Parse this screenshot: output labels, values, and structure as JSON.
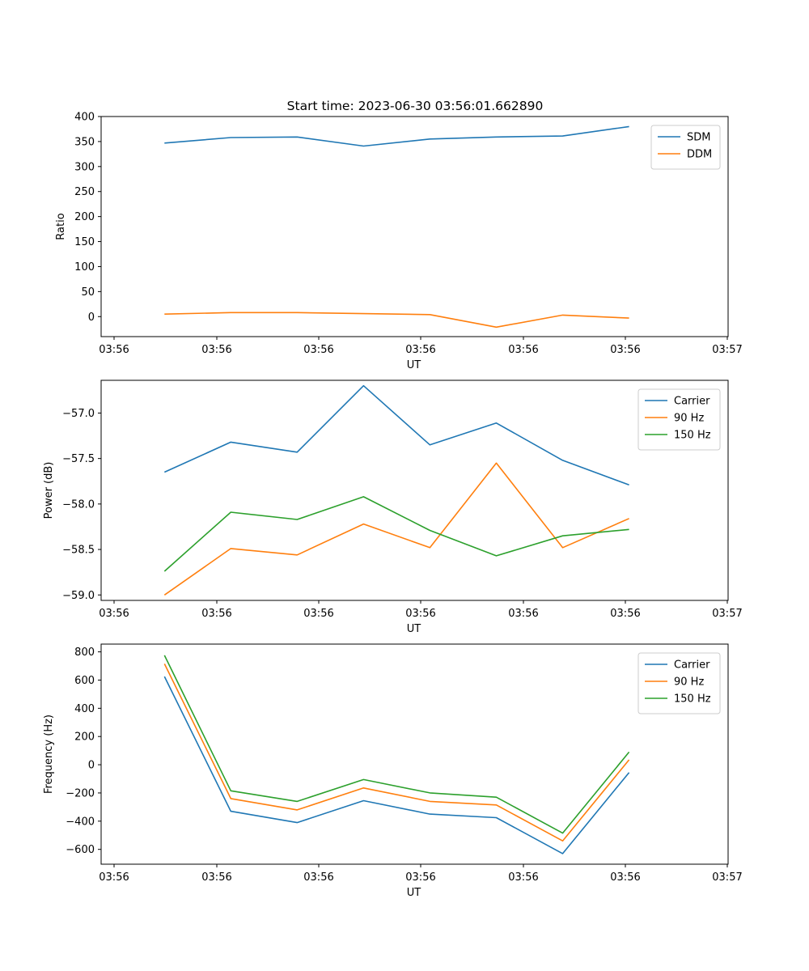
{
  "figure_title": "Start time: 2023-06-30 03:56:01.662890",
  "colors": {
    "blue": "#1f77b4",
    "orange": "#ff7f0e",
    "green": "#2ca02c"
  },
  "chart_data": [
    {
      "type": "line",
      "title": "Start time: 2023-06-30 03:56:01.662890",
      "xlabel": "UT",
      "ylabel": "Ratio",
      "x_tick_labels": [
        "03:56",
        "03:56",
        "03:56",
        "03:56",
        "03:56",
        "03:56",
        "03:57"
      ],
      "x_tick_values": [
        0,
        1,
        2,
        3,
        4,
        5,
        6
      ],
      "x": [
        0.5,
        1.15,
        1.8,
        2.45,
        3.1,
        3.75,
        4.4,
        5.05
      ],
      "xlim": [
        -0.12,
        6.02
      ],
      "ylim": [
        -40,
        400
      ],
      "y_ticks": [
        0,
        50,
        100,
        150,
        200,
        250,
        300,
        350,
        400
      ],
      "legend_position": "upper right",
      "series": [
        {
          "name": "SDM",
          "color": "#1f77b4",
          "values": [
            347,
            358,
            359,
            341,
            355,
            359,
            361,
            380
          ]
        },
        {
          "name": "DDM",
          "color": "#ff7f0e",
          "values": [
            5,
            8,
            8,
            6,
            4,
            -21,
            3,
            -3
          ]
        }
      ]
    },
    {
      "type": "line",
      "title": "",
      "xlabel": "UT",
      "ylabel": "Power (dB)",
      "x_tick_labels": [
        "03:56",
        "03:56",
        "03:56",
        "03:56",
        "03:56",
        "03:56",
        "03:57"
      ],
      "x_tick_values": [
        0,
        1,
        2,
        3,
        4,
        5,
        6
      ],
      "x": [
        0.5,
        1.15,
        1.8,
        2.45,
        3.1,
        3.75,
        4.4,
        5.05
      ],
      "xlim": [
        -0.12,
        6.02
      ],
      "ylim": [
        -59.06,
        -56.64
      ],
      "y_ticks": [
        -59.0,
        -58.5,
        -58.0,
        -57.5,
        -57.0
      ],
      "y_tick_labels": [
        "−59.0",
        "−58.5",
        "−58.0",
        "−57.5",
        "−57.0"
      ],
      "legend_position": "upper right",
      "series": [
        {
          "name": "Carrier",
          "color": "#1f77b4",
          "values": [
            -57.65,
            -57.32,
            -57.43,
            -56.7,
            -57.35,
            -57.11,
            -57.52,
            -57.79
          ]
        },
        {
          "name": "90 Hz",
          "color": "#ff7f0e",
          "values": [
            -59.0,
            -58.49,
            -58.56,
            -58.22,
            -58.48,
            -57.55,
            -58.48,
            -58.16
          ]
        },
        {
          "name": "150 Hz",
          "color": "#2ca02c",
          "values": [
            -58.74,
            -58.09,
            -58.17,
            -57.92,
            -58.29,
            -58.57,
            -58.35,
            -58.28
          ]
        }
      ]
    },
    {
      "type": "line",
      "title": "",
      "xlabel": "UT",
      "ylabel": "Frequency (Hz)",
      "x_tick_labels": [
        "03:56",
        "03:56",
        "03:56",
        "03:56",
        "03:56",
        "03:56",
        "03:57"
      ],
      "x_tick_values": [
        0,
        1,
        2,
        3,
        4,
        5,
        6
      ],
      "x": [
        0.5,
        1.15,
        1.8,
        2.45,
        3.1,
        3.75,
        4.4,
        5.05
      ],
      "xlim": [
        -0.12,
        6.02
      ],
      "ylim": [
        -705,
        855
      ],
      "y_ticks": [
        -600,
        -400,
        -200,
        0,
        200,
        400,
        600,
        800
      ],
      "y_tick_labels": [
        "−600",
        "−400",
        "−200",
        "0",
        "200",
        "400",
        "600",
        "800"
      ],
      "legend_position": "upper right",
      "series": [
        {
          "name": "Carrier",
          "color": "#1f77b4",
          "values": [
            625,
            -330,
            -410,
            -255,
            -350,
            -375,
            -630,
            -55
          ]
        },
        {
          "name": "90 Hz",
          "color": "#ff7f0e",
          "values": [
            715,
            -240,
            -320,
            -165,
            -260,
            -285,
            -540,
            35
          ]
        },
        {
          "name": "150 Hz",
          "color": "#2ca02c",
          "values": [
            775,
            -185,
            -260,
            -105,
            -200,
            -230,
            -485,
            90
          ]
        }
      ]
    }
  ]
}
